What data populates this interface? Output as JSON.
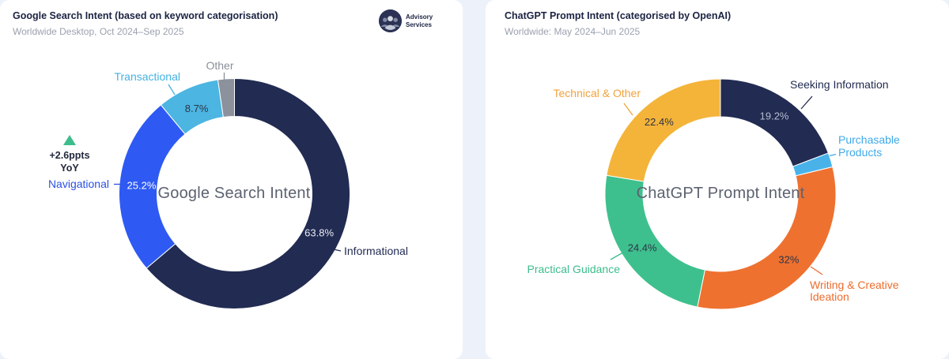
{
  "page": {
    "bg": "#edf2fa",
    "card_bg": "#ffffff"
  },
  "left_panel": {
    "title": "Google Search Intent (based on keyword categorisation)",
    "subtitle": "Worldwide Desktop, Oct 2024–Sep 2025",
    "center_label": "Google Search Intent",
    "annotation": {
      "line1": "+2.6ppts",
      "line2": "YoY",
      "triangle_color": "#3dbd8c"
    },
    "logo": {
      "line1": "Advisory",
      "line2": "Services"
    }
  },
  "right_panel": {
    "title": "ChatGPT Prompt Intent (categorised by OpenAI)",
    "subtitle": "Worldwide: May 2024–Jun 2025",
    "center_label": "ChatGPT Prompt Intent"
  },
  "colors": {
    "title_text": "#1c2342",
    "subtitle_text": "#9aa1ae",
    "center_text": "#5c6270",
    "pct_dark": "#2e3345",
    "pct_white": "#ffffff",
    "pct_soft_white": "#e9ebf2",
    "pct_muted_light": "#b7bccf"
  },
  "chart_data": [
    {
      "type": "pie",
      "variant": "donut",
      "title": "Google Search Intent",
      "start_angle_deg": 0,
      "direction": "clockwise",
      "slices": [
        {
          "label": "Informational",
          "value": 63.8,
          "display": "63.8%",
          "color": "#222b52",
          "pct_color": "#e9ebf2",
          "label_color": "#222b52"
        },
        {
          "label": "Navigational",
          "value": 25.2,
          "display": "25.2%",
          "color": "#2e5af3",
          "pct_color": "#ffffff",
          "label_color": "#2b51e3"
        },
        {
          "label": "Transactional",
          "value": 8.7,
          "display": "8.7%",
          "color": "#4cb5e2",
          "pct_color": "#2e3345",
          "label_color": "#45b1e2"
        },
        {
          "label": "Other",
          "value": 2.3,
          "display": "",
          "color": "#8b929c",
          "pct_color": "#2e3345",
          "label_color": "#8a9099"
        }
      ],
      "annotation": "+2.6ppts YoY (Navigational)"
    },
    {
      "type": "pie",
      "variant": "donut",
      "title": "ChatGPT Prompt Intent",
      "start_angle_deg": 0,
      "direction": "clockwise",
      "slices": [
        {
          "label": "Seeking Information",
          "value": 19.2,
          "display": "19.2%",
          "color": "#222b52",
          "pct_color": "#b7bccf",
          "label_color": "#232c52"
        },
        {
          "label": "Purchasable Products",
          "value": 2.0,
          "display": "",
          "color": "#49b3e9",
          "pct_color": "#2e3345",
          "label_color": "#3fa9e8"
        },
        {
          "label": "Writing & Creative Ideation",
          "value": 32.0,
          "display": "32%",
          "color": "#ee7130",
          "pct_color": "#2e3345",
          "label_color": "#ed6c2e"
        },
        {
          "label": "Practical Guidance",
          "value": 24.4,
          "display": "24.4%",
          "color": "#3ec08e",
          "pct_color": "#2e3345",
          "label_color": "#3dbd8c"
        },
        {
          "label": "Technical & Other",
          "value": 22.4,
          "display": "22.4%",
          "color": "#f4b43a",
          "pct_color": "#2e3345",
          "label_color": "#f2a23c"
        }
      ]
    }
  ]
}
